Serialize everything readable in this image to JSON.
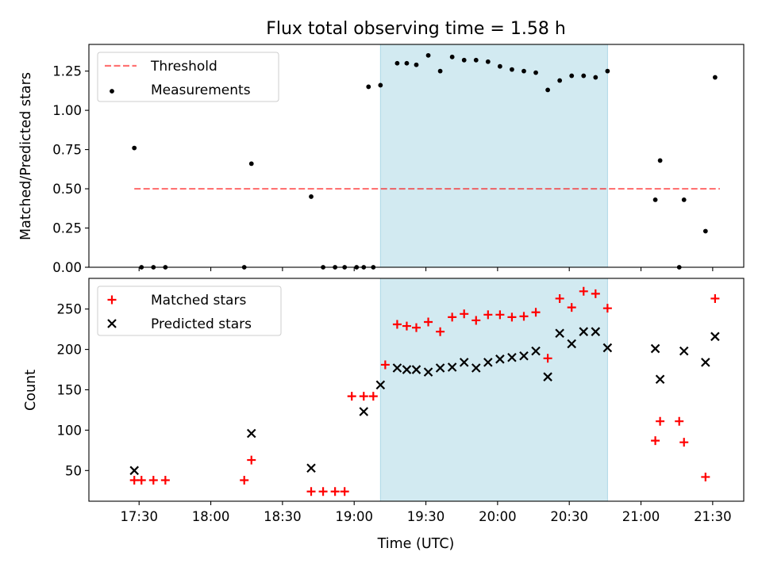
{
  "title": "Flux total observing time = 1.58 h",
  "xlabel": "Time (UTC)",
  "colors": {
    "shade": "#add8e6",
    "threshold": "#ff0000",
    "matched": "#ff0000",
    "predicted": "#000000",
    "measurement": "#000000"
  },
  "chart_data": [
    {
      "type": "scatter",
      "panel": "top",
      "ylabel": "Matched/Predicted stars",
      "ylim": [
        0,
        1.42
      ],
      "xlim": [
        "17:09",
        "21:43"
      ],
      "y_ticks": [
        "0.00",
        "0.25",
        "0.50",
        "0.75",
        "1.00",
        "1.25"
      ],
      "shaded_interval": [
        "19:11",
        "20:46"
      ],
      "legend_position": "top-left",
      "legend": [
        {
          "label": "Threshold",
          "marker": "dashed-line"
        },
        {
          "label": "Measurements",
          "marker": "dot"
        }
      ],
      "threshold": {
        "value": 0.5,
        "x_from": "17:28",
        "x_to": "21:33"
      },
      "series": [
        {
          "name": "Measurements",
          "x": [
            "17:28",
            "17:31",
            "17:36",
            "17:41",
            "18:42",
            "18:56",
            "19:01",
            "19:06",
            "19:08",
            "19:11",
            "19:18",
            "19:22",
            "19:26",
            "19:31",
            "19:36",
            "19:41",
            "19:46",
            "19:51",
            "19:56",
            "20:01",
            "20:06",
            "20:11",
            "20:16",
            "20:21",
            "20:26",
            "20:31",
            "20:36",
            "20:41",
            "20:46",
            "21:06",
            "21:08",
            "21:16",
            "21:18",
            "21:27",
            "21:31",
            "18:14",
            "18:17",
            "18:47",
            "18:52",
            "19:04"
          ],
          "y": [
            0.76,
            0.0,
            0.0,
            0.0,
            0.45,
            0.0,
            0.0,
            1.15,
            0.0,
            1.16,
            1.3,
            1.3,
            1.29,
            1.35,
            1.25,
            1.34,
            1.32,
            1.32,
            1.31,
            1.28,
            1.26,
            1.25,
            1.24,
            1.13,
            1.19,
            1.22,
            1.22,
            1.21,
            1.25,
            0.43,
            0.68,
            0.0,
            0.43,
            0.23,
            1.21,
            0.0,
            0.66,
            0.0,
            0.0,
            0.0
          ]
        }
      ]
    },
    {
      "type": "scatter",
      "panel": "bottom",
      "ylabel": "Count",
      "ylim": [
        12,
        288
      ],
      "xlim": [
        "17:09",
        "21:43"
      ],
      "y_ticks": [
        "50",
        "100",
        "150",
        "200",
        "250"
      ],
      "x_ticks": [
        "17:30",
        "18:00",
        "18:30",
        "19:00",
        "19:30",
        "20:00",
        "20:30",
        "21:00",
        "21:30"
      ],
      "shaded_interval": [
        "19:11",
        "20:46"
      ],
      "legend_position": "top-left",
      "legend": [
        {
          "label": "Matched stars",
          "marker": "plus"
        },
        {
          "label": "Predicted stars",
          "marker": "x"
        }
      ],
      "series": [
        {
          "name": "Matched stars",
          "x": [
            "17:28",
            "17:31",
            "17:36",
            "17:41",
            "18:14",
            "18:17",
            "18:42",
            "18:47",
            "18:52",
            "18:56",
            "18:59",
            "19:04",
            "19:08",
            "19:13",
            "19:18",
            "19:22",
            "19:26",
            "19:31",
            "19:36",
            "19:41",
            "19:46",
            "19:51",
            "19:56",
            "20:01",
            "20:06",
            "20:11",
            "20:16",
            "20:21",
            "20:26",
            "20:31",
            "20:36",
            "20:41",
            "20:46",
            "21:06",
            "21:08",
            "21:16",
            "21:18",
            "21:27",
            "21:31"
          ],
          "y": [
            38,
            38,
            38,
            38,
            38,
            63,
            24,
            24,
            24,
            24,
            142,
            142,
            142,
            181,
            231,
            229,
            227,
            234,
            222,
            240,
            244,
            236,
            243,
            243,
            240,
            241,
            246,
            189,
            263,
            252,
            272,
            269,
            251,
            87,
            111,
            111,
            85,
            42,
            263
          ]
        },
        {
          "name": "Predicted stars",
          "x": [
            "17:28",
            "18:17",
            "18:42",
            "19:04",
            "19:11",
            "19:18",
            "19:22",
            "19:26",
            "19:31",
            "19:36",
            "19:41",
            "19:46",
            "19:51",
            "19:56",
            "20:01",
            "20:06",
            "20:11",
            "20:16",
            "20:21",
            "20:26",
            "20:31",
            "20:36",
            "20:41",
            "20:46",
            "21:06",
            "21:08",
            "21:18",
            "21:27",
            "21:31"
          ],
          "y": [
            50,
            96,
            53,
            123,
            156,
            177,
            175,
            175,
            172,
            177,
            178,
            184,
            177,
            184,
            188,
            190,
            192,
            198,
            166,
            220,
            207,
            222,
            222,
            202,
            201,
            163,
            198,
            184,
            216
          ]
        }
      ]
    }
  ]
}
